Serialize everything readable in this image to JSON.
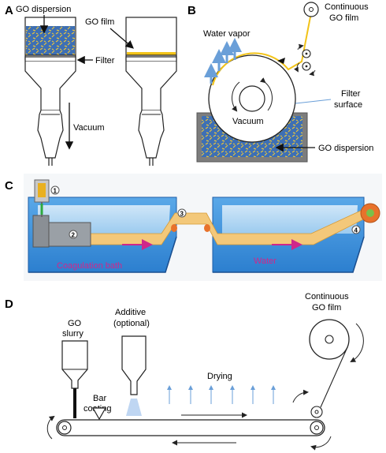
{
  "panels": {
    "a": {
      "letter": "A",
      "go_dispersion": "GO dispersion",
      "go_film": "GO film",
      "filter": "Filter",
      "vacuum": "Vacuum"
    },
    "b": {
      "letter": "B",
      "continuous_line1": "Continuous",
      "continuous_line2": "GO film",
      "water_vapor": "Water vapor",
      "filter_line1": "Filter",
      "filter_line2": "surface",
      "vacuum": "Vacuum",
      "go_dispersion": "GO dispersion"
    },
    "c": {
      "letter": "C",
      "coagulation_bath": "Coagulation bath",
      "water": "Water",
      "steps": [
        "1",
        "2",
        "3",
        "4"
      ]
    },
    "d": {
      "letter": "D",
      "go_line1": "GO",
      "go_line2": "slurry",
      "additive_line1": "Additive",
      "additive_line2": "(optional)",
      "bar_line1": "Bar",
      "bar_line2": "coating",
      "drying": "Drying",
      "continuous_line1": "Continuous",
      "continuous_line2": "GO film"
    }
  },
  "colors": {
    "dispersion_blue": "#3d6fb5",
    "flake_yellow": "#e9c43b",
    "film_yellow": "#f2c318",
    "bath_blue": "#2e86d4",
    "tape_orange": "#f3c87a",
    "magenta": "#d0278a",
    "vapor_blue": "#6a9fd8"
  }
}
